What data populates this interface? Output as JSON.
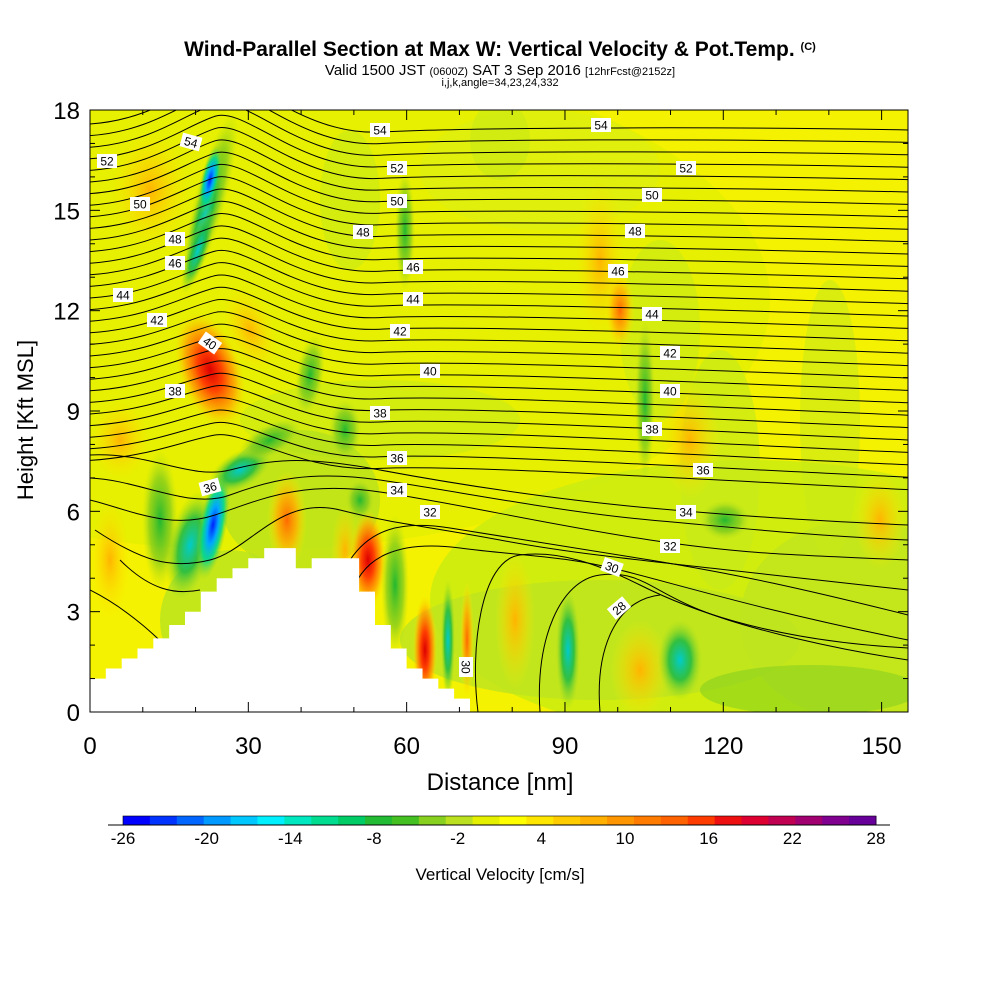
{
  "chart_data": {
    "type": "heatmap",
    "title": "Wind-Parallel Section at Max W: Vertical Velocity & Pot.Temp.",
    "title_mark": "(C)",
    "subtitle": {
      "prefix": "Valid 1500 JST",
      "utc": "(0600Z)",
      "date": "SAT 3 Sep 2016",
      "forecast": "[12hrFcst@2152z]"
    },
    "subtitle2": "i,j,k,angle=34,23,24,332",
    "xlabel": "Distance [nm]",
    "ylabel": "Height [Kft MSL]",
    "xlim": [
      0,
      155
    ],
    "ylim": [
      0,
      18
    ],
    "xticks": [
      "0",
      "30",
      "60",
      "90",
      "120",
      "150"
    ],
    "yticks": [
      "0",
      "3",
      "6",
      "9",
      "12",
      "15",
      "18"
    ],
    "colorbar": {
      "label": "Vertical Velocity [cm/s]",
      "range": [
        -26,
        28
      ],
      "step": 2,
      "tick_labels": [
        "-26",
        "-20",
        "-14",
        "-8",
        "-2",
        "4",
        "10",
        "16",
        "22",
        "28"
      ],
      "colors": [
        "#0000ff",
        "#0033ff",
        "#0066ff",
        "#0099ff",
        "#00c8ff",
        "#00f0ff",
        "#00e8c0",
        "#00dc90",
        "#00cc66",
        "#22bb33",
        "#44c022",
        "#88d020",
        "#bbe020",
        "#e4f000",
        "#ffff00",
        "#ffe600",
        "#ffcc00",
        "#ffb000",
        "#ff9600",
        "#ff7c00",
        "#ff6200",
        "#ff3c00",
        "#ee1010",
        "#dd0030",
        "#c00050",
        "#a00070",
        "#800090",
        "#660099"
      ]
    },
    "contour_field": "Potential temperature (C)",
    "contour_labels": [
      "28",
      "30",
      "32",
      "34",
      "36",
      "38",
      "40",
      "42",
      "44",
      "46",
      "48",
      "50",
      "52",
      "54"
    ],
    "terrain_blocked": "white",
    "updrafts": [
      {
        "x": 22,
        "y": 10,
        "w": 18
      },
      {
        "x": 46,
        "y": 6,
        "w": 10
      },
      {
        "x": 55,
        "y": 4,
        "w": 14
      },
      {
        "x": 64,
        "y": 2,
        "w": 12
      },
      {
        "x": 98,
        "y": 14,
        "w": 8
      }
    ],
    "downdrafts": [
      {
        "x": 20,
        "y": 16,
        "w": -14
      },
      {
        "x": 23,
        "y": 6,
        "w": -24
      },
      {
        "x": 66,
        "y": 2,
        "w": -8
      },
      {
        "x": 91,
        "y": 2,
        "w": -8
      },
      {
        "x": 111,
        "y": 2,
        "w": -8
      }
    ]
  }
}
